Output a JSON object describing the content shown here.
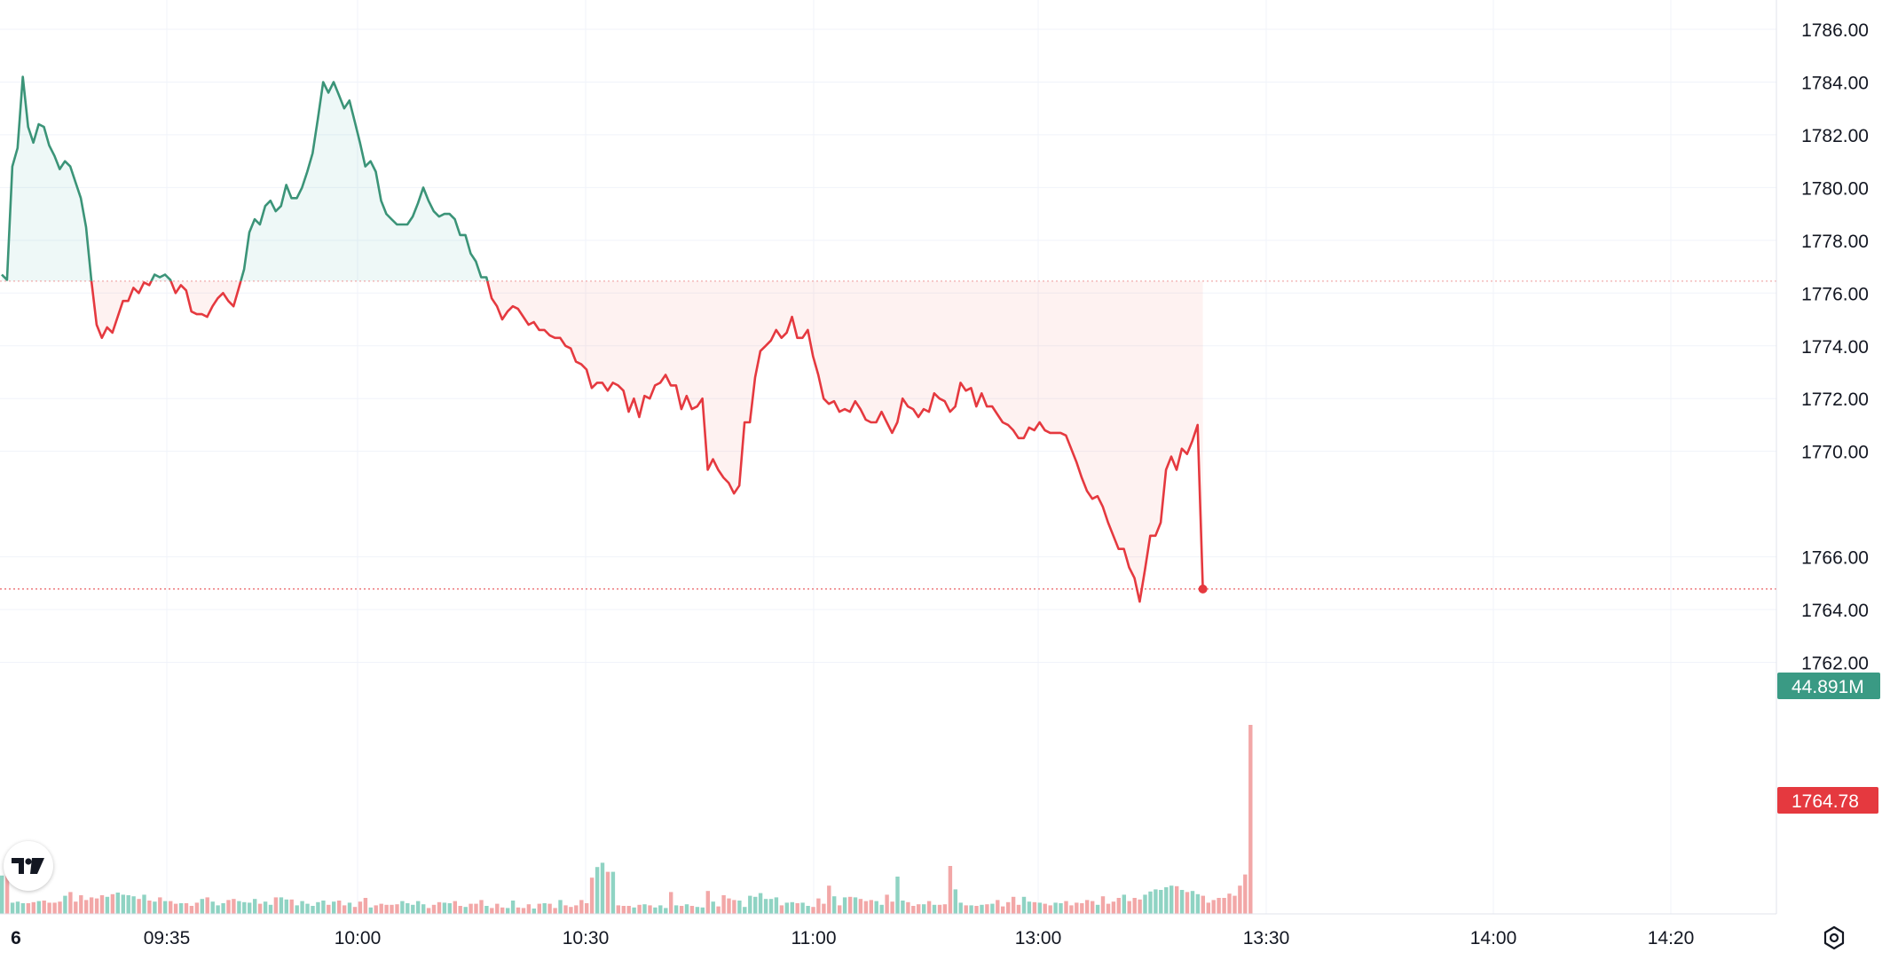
{
  "chart_data": {
    "type": "area",
    "price_axis": {
      "ticks": [
        "1786.00",
        "1784.00",
        "1782.00",
        "1780.00",
        "1778.00",
        "1776.00",
        "1774.00",
        "1772.00",
        "1770.00",
        "1766.00",
        "1764.00",
        "1762.00"
      ],
      "range": [
        1761.5,
        1786.8
      ]
    },
    "time_axis": {
      "ticks": [
        "6",
        "09:35",
        "10:00",
        "10:30",
        "11:00",
        "13:00",
        "13:30",
        "14:00",
        "14:20"
      ]
    },
    "baseline": 1776.45,
    "last_price": 1764.78,
    "last_price_label": "1764.78",
    "volume_label": "44.891M",
    "colors": {
      "up": "#26a69a",
      "down": "#ef5350",
      "up_line": "#3b9478",
      "down_line": "#e5393f",
      "volume_up": "#8fd3c3",
      "volume_down": "#f2a7a7"
    },
    "series": [
      {
        "values": [
          1776.7,
          1776.5,
          1780.8,
          1781.5,
          1784.2,
          1782.3,
          1781.7,
          1782.4,
          1782.3,
          1781.6,
          1781.2,
          1780.7,
          1781.0,
          1780.8,
          1780.2,
          1779.6,
          1778.5,
          1776.5,
          1774.8,
          1774.3,
          1774.7,
          1774.5,
          1775.1,
          1775.7,
          1775.7,
          1776.2,
          1776.0,
          1776.4,
          1776.3,
          1776.7,
          1776.6,
          1776.7,
          1776.5,
          1776.0,
          1776.3,
          1776.1,
          1775.3,
          1775.2,
          1775.2,
          1775.1,
          1775.5,
          1775.8,
          1776.0,
          1775.7,
          1775.5,
          1776.2,
          1776.9,
          1778.3,
          1778.8,
          1778.6,
          1779.3,
          1779.5,
          1779.1,
          1779.3,
          1780.1,
          1779.6,
          1779.6,
          1780.0,
          1780.6,
          1781.3,
          1782.6,
          1784.0,
          1783.6,
          1784.0,
          1783.5,
          1783.0,
          1783.3,
          1782.5,
          1781.7,
          1780.8,
          1781.0,
          1780.6,
          1779.5,
          1779.0,
          1778.8,
          1778.6,
          1778.6,
          1778.6,
          1778.9,
          1779.4,
          1780.0,
          1779.5,
          1779.1,
          1778.9,
          1779.0,
          1779.0,
          1778.8,
          1778.2,
          1778.2,
          1777.5,
          1777.2,
          1776.6,
          1776.6,
          1775.8,
          1775.5,
          1775.0,
          1775.3,
          1775.5,
          1775.4,
          1775.1,
          1774.8,
          1774.9,
          1774.6,
          1774.6,
          1774.4,
          1774.3,
          1774.3,
          1774.0,
          1773.9,
          1773.4,
          1773.3,
          1773.1,
          1772.4,
          1772.6,
          1772.6,
          1772.3,
          1772.6,
          1772.5,
          1772.3,
          1771.5,
          1772.0,
          1771.3,
          1772.1,
          1772.0,
          1772.5,
          1772.6,
          1772.9,
          1772.5,
          1772.5,
          1771.6,
          1772.1,
          1771.6,
          1771.7,
          1772.0,
          1769.3,
          1769.7,
          1769.3,
          1769.0,
          1768.8,
          1768.4,
          1768.7,
          1771.1,
          1771.1,
          1772.8,
          1773.8,
          1774.0,
          1774.2,
          1774.6,
          1774.3,
          1774.5,
          1775.1,
          1774.3,
          1774.3,
          1774.6,
          1773.6,
          1772.9,
          1772.0,
          1771.8,
          1771.9,
          1771.5,
          1771.6,
          1771.5,
          1771.9,
          1771.6,
          1771.2,
          1771.1,
          1771.1,
          1771.5,
          1771.1,
          1770.7,
          1771.1,
          1772.0,
          1771.7,
          1771.6,
          1771.3,
          1771.6,
          1771.5,
          1772.2,
          1772.0,
          1771.9,
          1771.5,
          1771.7,
          1772.6,
          1772.3,
          1772.4,
          1771.7,
          1772.2,
          1771.7,
          1771.7,
          1771.4,
          1771.1,
          1771.0,
          1770.8,
          1770.5,
          1770.5,
          1770.9,
          1770.8,
          1771.1,
          1770.8,
          1770.7,
          1770.7,
          1770.7,
          1770.6,
          1770.1,
          1769.6,
          1769.0,
          1768.5,
          1768.2,
          1768.3,
          1767.9,
          1767.3,
          1766.8,
          1766.3,
          1766.3,
          1765.6,
          1765.2,
          1764.3,
          1765.5,
          1766.8,
          1766.8,
          1767.3,
          1769.3,
          1769.8,
          1769.3,
          1770.1,
          1769.9,
          1770.4,
          1771.0,
          1764.78
        ]
      },
      {
        "name": "volume",
        "values": [
          7.2,
          9.1,
          2.1,
          2.3,
          2.0,
          2.0,
          2.2,
          2.4,
          2.5,
          2.1,
          2.1,
          2.3,
          3.4,
          4.1,
          2.3,
          3.5,
          2.6,
          3.1,
          2.9,
          3.5,
          3.2,
          3.7,
          4.0,
          3.6,
          3.5,
          3.3,
          2.8,
          3.6,
          2.5,
          2.3,
          3.1,
          2.4,
          2.4,
          1.9,
          2.0,
          2.0,
          1.5,
          2.1,
          2.8,
          3.1,
          2.3,
          1.6,
          2.0,
          2.6,
          2.8,
          2.4,
          2.2,
          2.1,
          2.8,
          1.9,
          2.3,
          1.7,
          3.1,
          3.1,
          2.7,
          2.7,
          1.6,
          2.4,
          1.9,
          1.5,
          2.2,
          2.5,
          1.7,
          2.3,
          2.5,
          1.6,
          2.1,
          1.3,
          2.3,
          3.0,
          1.2,
          1.6,
          1.9,
          1.7,
          1.7,
          1.8,
          2.4,
          2.0,
          1.7,
          2.4,
          1.8,
          1.1,
          1.7,
          2.2,
          2.1,
          2.0,
          2.4,
          1.5,
          1.3,
          1.9,
          1.9,
          2.6,
          1.5,
          1.1,
          1.9,
          1.2,
          1.1,
          2.5,
          1.2,
          1.1,
          1.8,
          1.0,
          1.9,
          2.0,
          1.9,
          1.1,
          2.6,
          1.6,
          1.3,
          1.6,
          2.6,
          2.0,
          6.8,
          8.8,
          9.6,
          7.9,
          7.9,
          1.6,
          1.5,
          1.5,
          1.2,
          1.7,
          1.8,
          1.6,
          1.2,
          1.6,
          1.1,
          4.1,
          1.6,
          1.5,
          1.8,
          1.5,
          1.3,
          1.2,
          4.3,
          2.3,
          1.4,
          3.5,
          2.9,
          2.6,
          2.5,
          1.3,
          3.4,
          3.2,
          3.9,
          2.8,
          2.8,
          3.1,
          1.6,
          2.1,
          2.2,
          2.0,
          2.1,
          1.5,
          1.3,
          2.9,
          1.9,
          5.3,
          3.3,
          1.6,
          3.1,
          3.2,
          3.1,
          2.8,
          2.4,
          2.6,
          2.4,
          1.7,
          3.6,
          2.3,
          7.0,
          2.5,
          2.2,
          1.5,
          1.8,
          1.8,
          2.4,
          1.7,
          1.7,
          1.8,
          9.0,
          4.6,
          2.1,
          1.6,
          1.6,
          1.5,
          1.7,
          1.8,
          1.9,
          2.6,
          1.4,
          2.2,
          3.2,
          1.7,
          3.2,
          2.3,
          2.2,
          2.1,
          1.9,
          1.6,
          2.1,
          2.0,
          2.4,
          1.6,
          2.1,
          2.0,
          2.6,
          2.4,
          1.7,
          3.3,
          1.9,
          2.3,
          3.0,
          3.6,
          2.4,
          3.0,
          2.7,
          3.6,
          4.2,
          4.6,
          4.5,
          5.0,
          5.3,
          5.2,
          4.5,
          4.1,
          4.3,
          3.7,
          3.4,
          2.1,
          2.6,
          3.0,
          3.0,
          3.8,
          3.4,
          5.3,
          7.4,
          35.5
        ]
      }
    ],
    "title": "",
    "xlabel": "",
    "ylabel": "",
    "grid": true,
    "legend": "none"
  },
  "branding": {
    "logo_icon": "tradingview-logo"
  },
  "controls": {
    "settings_icon": "settings-gear-icon"
  }
}
